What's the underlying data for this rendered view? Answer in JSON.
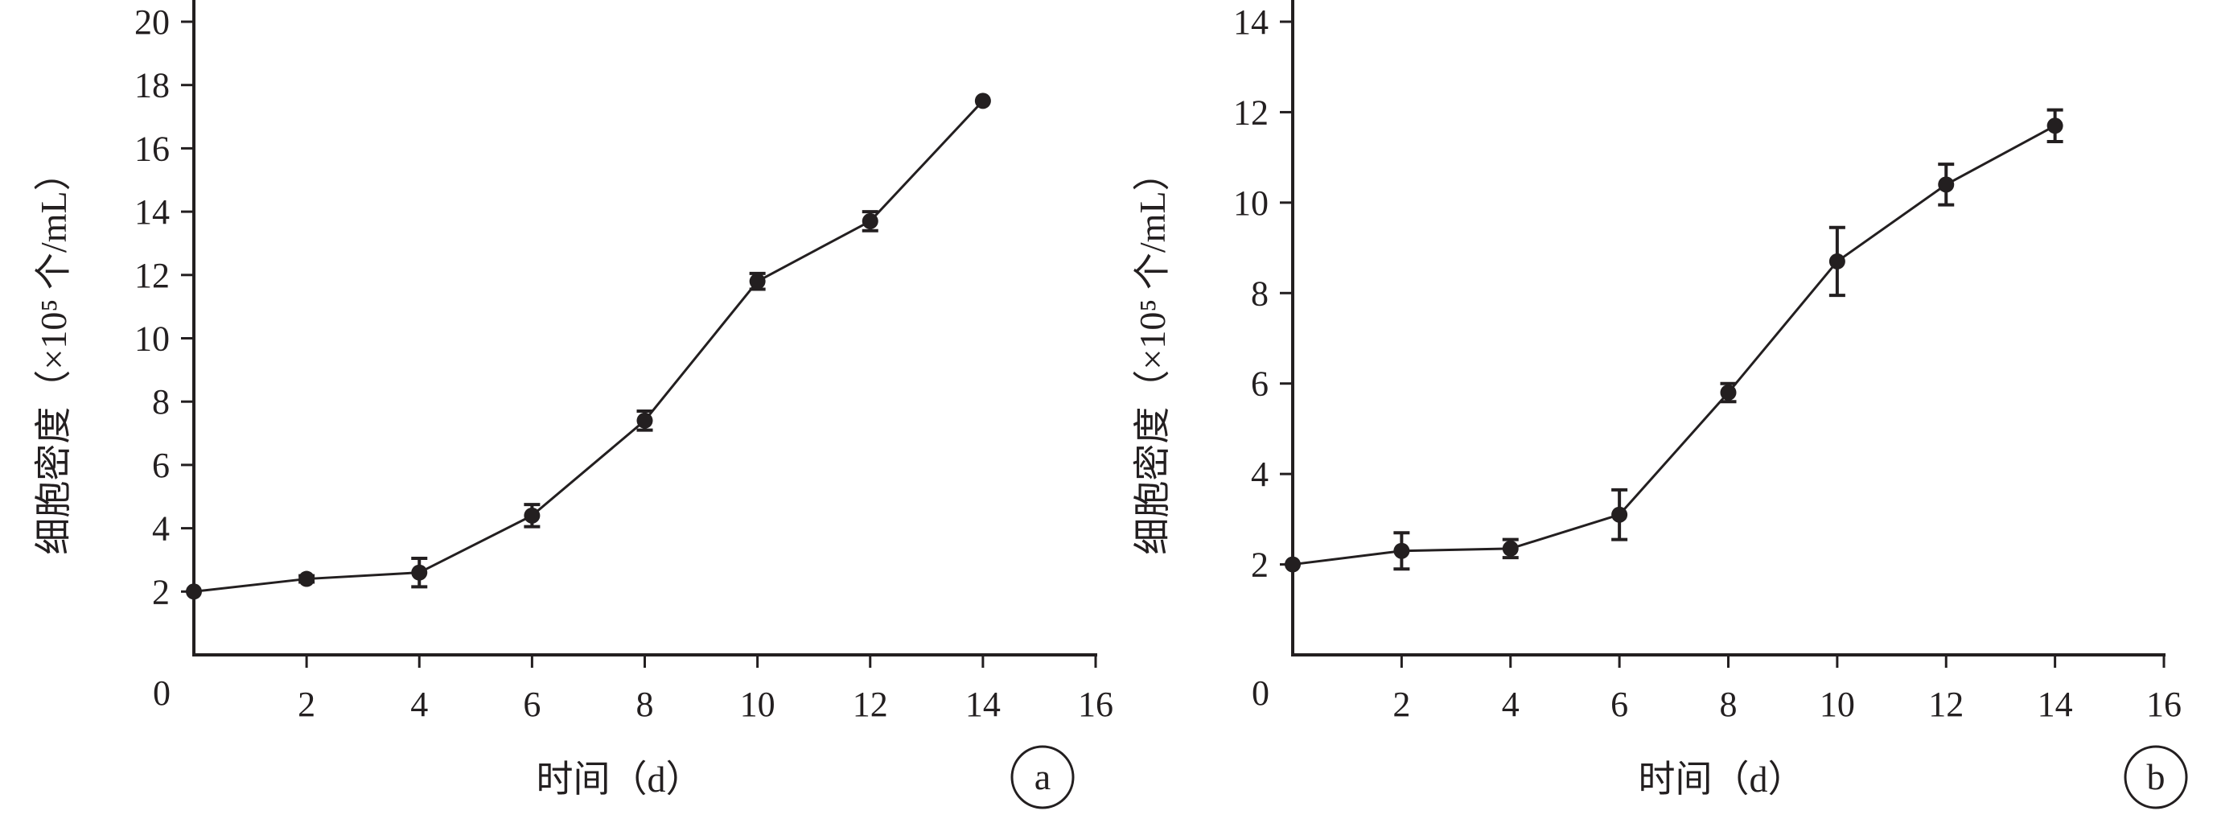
{
  "chart_data": [
    {
      "type": "line",
      "panel_label": "a",
      "xlabel": "时间（d）",
      "ylabel": "细胞密度（×10⁵ 个/mL）",
      "xlim": [
        0,
        16
      ],
      "ylim": [
        0,
        20
      ],
      "origin_label": "0",
      "x_ticks": [
        2,
        4,
        6,
        8,
        10,
        12,
        14,
        16
      ],
      "y_ticks": [
        2,
        4,
        6,
        8,
        10,
        12,
        14,
        16,
        18,
        20
      ],
      "series": [
        {
          "x": [
            0,
            2,
            4,
            6,
            8,
            10,
            12,
            14
          ],
          "y": [
            2.0,
            2.4,
            2.6,
            4.4,
            7.4,
            11.8,
            13.7,
            17.5
          ],
          "error": [
            0.0,
            0.1,
            0.45,
            0.35,
            0.3,
            0.25,
            0.3,
            0.0
          ]
        }
      ],
      "line_color": "#231f20"
    },
    {
      "type": "line",
      "panel_label": "b",
      "xlabel": "时间（d）",
      "ylabel": "细胞密度（×10⁵ 个/mL）",
      "xlim": [
        0,
        16
      ],
      "ylim": [
        0,
        14
      ],
      "origin_label": "0",
      "x_ticks": [
        2,
        4,
        6,
        8,
        10,
        12,
        14,
        16
      ],
      "y_ticks": [
        2,
        4,
        6,
        8,
        10,
        12,
        14
      ],
      "series": [
        {
          "x": [
            0,
            2,
            4,
            6,
            8,
            10,
            12,
            14
          ],
          "y": [
            2.0,
            2.3,
            2.35,
            3.1,
            5.8,
            8.7,
            10.4,
            11.7
          ],
          "error": [
            0.0,
            0.4,
            0.2,
            0.55,
            0.2,
            0.75,
            0.45,
            0.35
          ]
        }
      ],
      "line_color": "#231f20"
    }
  ]
}
